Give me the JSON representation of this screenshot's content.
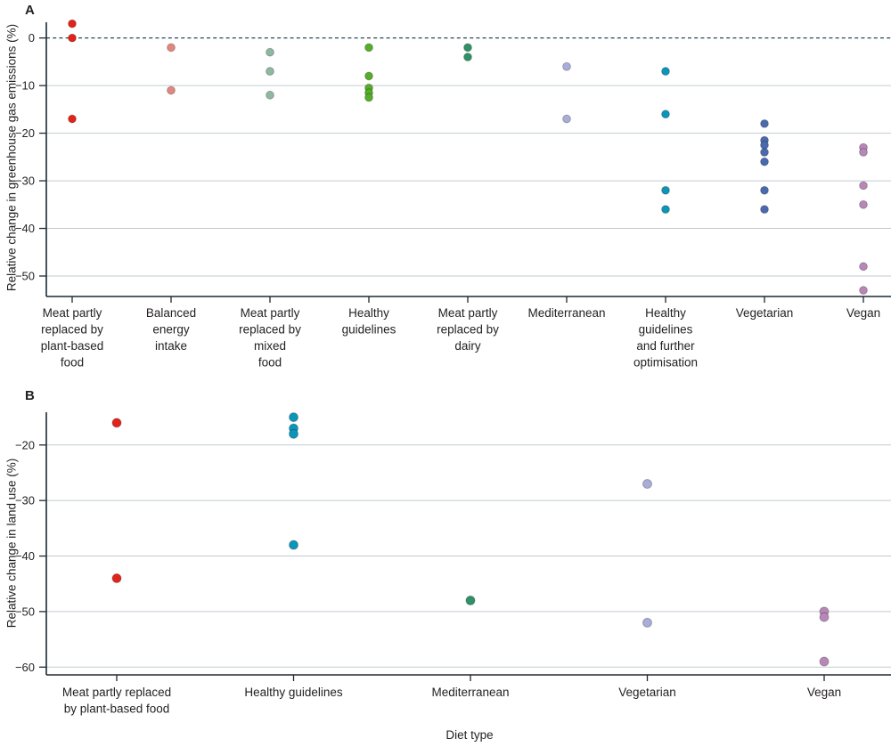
{
  "style_colors": {
    "grid": "#c2cbd0",
    "zero_line": "#2b4a58",
    "axis": "#1b2a33",
    "text": "#231f20",
    "background": "#ffffff"
  },
  "chart_data": [
    {
      "type": "scatter",
      "panel_label": "A",
      "title": "",
      "ylabel": "Relative change in greenhouse gas emissions (%)",
      "xlabel": "",
      "yticks": [
        0,
        -10,
        -20,
        -30,
        -40,
        -50
      ],
      "ylim": [
        3.3,
        -54.3
      ],
      "zero_line_dashed": true,
      "grid": true,
      "legend": "none",
      "categories": [
        {
          "label": "Meat partly replaced by plant-based food",
          "lines": [
            "Meat partly",
            "replaced by",
            "plant-based",
            "food"
          ],
          "color": "#e2231a",
          "values": [
            3,
            0,
            -17
          ]
        },
        {
          "label": "Balanced energy intake",
          "lines": [
            "Balanced",
            "energy",
            "intake"
          ],
          "color": "#e2877e",
          "values": [
            -2,
            -11
          ]
        },
        {
          "label": "Meat partly replaced by mixed food",
          "lines": [
            "Meat partly",
            "replaced by",
            "mixed",
            "food"
          ],
          "color": "#90b8a0",
          "values": [
            -3,
            -7,
            -12
          ]
        },
        {
          "label": "Healthy guidelines",
          "lines": [
            "Healthy",
            "guidelines"
          ],
          "color": "#55ad28",
          "values": [
            -2,
            -8,
            -10.5,
            -11.5,
            -12.5
          ]
        },
        {
          "label": "Meat partly replaced by dairy",
          "lines": [
            "Meat partly",
            "replaced by",
            "dairy"
          ],
          "color": "#2f9168",
          "values": [
            -2,
            -4
          ]
        },
        {
          "label": "Mediterranean",
          "lines": [
            "Mediterranean"
          ],
          "color": "#a8add9",
          "values": [
            -6,
            -17
          ]
        },
        {
          "label": "Healthy guidelines and further optimisation",
          "lines": [
            "Healthy",
            "guidelines",
            "and further",
            "optimisation"
          ],
          "color": "#0a96bb",
          "values": [
            -7,
            -16,
            -32,
            -36
          ]
        },
        {
          "label": "Vegetarian",
          "lines": [
            "Vegetarian"
          ],
          "color": "#4a6ab0",
          "values": [
            -18,
            -21.5,
            -22.5,
            -24,
            -26,
            -32,
            -36
          ]
        },
        {
          "label": "Vegan",
          "lines": [
            "Vegan"
          ],
          "color": "#b787b8",
          "values": [
            -23,
            -24,
            -31,
            -35,
            -48,
            -53
          ]
        }
      ]
    },
    {
      "type": "scatter",
      "panel_label": "B",
      "title": "",
      "ylabel": "Relative change in land use (%)",
      "xlabel": "Diet type",
      "yticks": [
        -20,
        -30,
        -40,
        -50,
        -60
      ],
      "ylim": [
        -14.1,
        -61.4
      ],
      "zero_line_dashed": false,
      "grid": true,
      "legend": "none",
      "categories": [
        {
          "label": "Meat partly replaced by plant-based food",
          "lines": [
            "Meat partly replaced",
            "by plant-based food"
          ],
          "color": "#e2231a",
          "values": [
            -16,
            -44
          ]
        },
        {
          "label": "Healthy guidelines",
          "lines": [
            "Healthy guidelines"
          ],
          "color": "#0a96bb",
          "values": [
            -15,
            -17,
            -18,
            -38
          ]
        },
        {
          "label": "Mediterranean",
          "lines": [
            "Mediterranean"
          ],
          "color": "#2f9168",
          "values": [
            -48
          ]
        },
        {
          "label": "Vegetarian",
          "lines": [
            "Vegetarian"
          ],
          "color": "#a8add9",
          "values": [
            -27,
            -52
          ]
        },
        {
          "label": "Vegan",
          "lines": [
            "Vegan"
          ],
          "color": "#b787b8",
          "values": [
            -50,
            -51,
            -59
          ]
        }
      ]
    }
  ]
}
